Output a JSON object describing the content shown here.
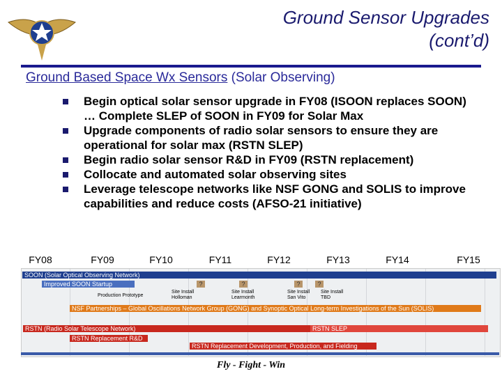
{
  "header": {
    "title_lines": [
      "Ground Sensor Upgrades",
      "(cont’d)"
    ]
  },
  "subtitle": {
    "underlined": "Ground Based Space Wx Sensors",
    "rest": " (Solar Observing)"
  },
  "bullets": [
    "Begin optical solar sensor upgrade in FY08 (ISOON replaces SOON) … Complete SLEP of SOON in FY09 for Solar Max",
    "Upgrade components of radio solar sensors to ensure they are operational for solar max (RSTN SLEP)",
    "Begin radio solar sensor R&D in FY09 (RSTN replacement)",
    "Collocate and automated solar observing sites",
    "Leverage telescope networks like NSF GONG and SOLIS to improve capabilities and reduce costs (AFSO-21 initiative)"
  ],
  "timeline": {
    "years": [
      "FY08",
      "FY09",
      "FY10",
      "FY11",
      "FY12",
      "FY13",
      "FY14",
      "FY15"
    ],
    "bars": [
      "SOON (Solar Optical Observing Network)",
      "Improved SOON Startup",
      "NSF Partnerships – Global Oscillations Network Group (GONG) and Synoptic Optical Long-term Investigations of the Sun (SOLIS)",
      "RSTN (Radio Solar Telescope Network)",
      "RSTN SLEP",
      "RSTN Replacement R&D",
      "RSTN Replacement Development, Production, and Fielding"
    ],
    "milestone_symbols": [
      "?",
      "?",
      "?",
      "?"
    ],
    "notes": [
      "Production Prototype",
      "Site Install Holloman",
      "Site Install Learmonth",
      "Site Install San Vito",
      "Site Install TBD"
    ]
  },
  "footer": "Fly - Fight - Win"
}
